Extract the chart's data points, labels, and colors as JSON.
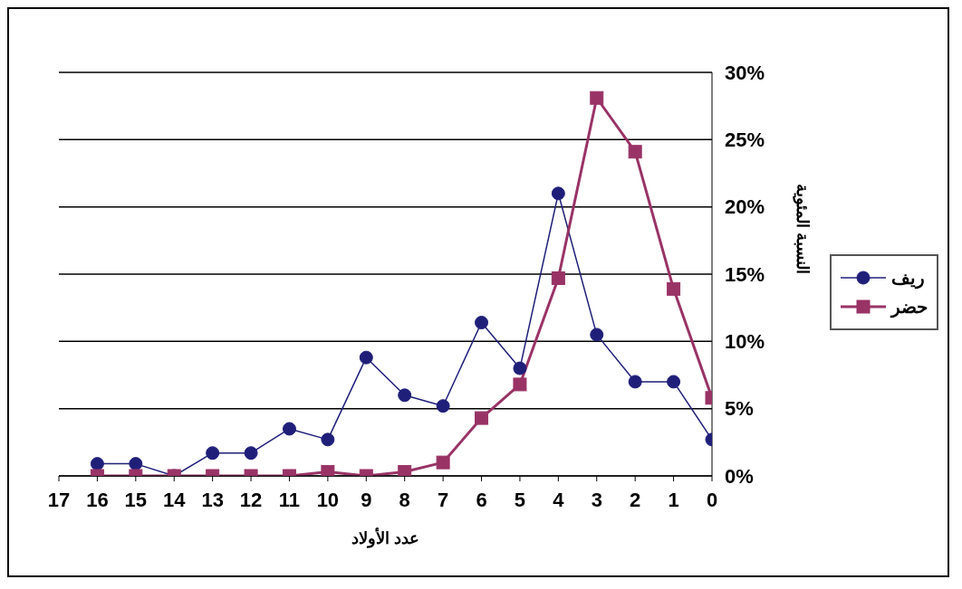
{
  "chart_data": {
    "type": "line",
    "xlabel": "عدد الأولاد",
    "ylabel": "النسبة المئوية",
    "categories": [
      "17",
      "16",
      "15",
      "14",
      "13",
      "12",
      "11",
      "10",
      "9",
      "8",
      "7",
      "6",
      "5",
      "4",
      "3",
      "2",
      "1",
      "0"
    ],
    "series": [
      {
        "name": "ريف",
        "color": "#1f1f7a",
        "marker": "circle",
        "values": [
          null,
          0.9,
          0.9,
          0,
          1.7,
          1.7,
          3.5,
          2.7,
          8.8,
          6.0,
          5.2,
          11.4,
          8.0,
          21.0,
          10.5,
          7.0,
          7.0,
          2.7
        ]
      },
      {
        "name": "حضر",
        "color": "#993366",
        "marker": "square",
        "values": [
          null,
          0,
          0,
          0,
          0,
          0,
          0,
          0.3,
          0,
          0.3,
          1.0,
          4.3,
          6.8,
          14.7,
          28.1,
          24.1,
          13.9,
          5.8
        ]
      }
    ],
    "ylim": [
      0,
      30
    ],
    "yticks": [
      {
        "value": 0,
        "label": "0%"
      },
      {
        "value": 5,
        "label": "5%"
      },
      {
        "value": 10,
        "label": "10%"
      },
      {
        "value": 15,
        "label": "15%"
      },
      {
        "value": 20,
        "label": "20%"
      },
      {
        "value": 25,
        "label": "25%"
      },
      {
        "value": 30,
        "label": "30%"
      }
    ],
    "grid": "y",
    "legend": "right",
    "line_style": "solid"
  }
}
